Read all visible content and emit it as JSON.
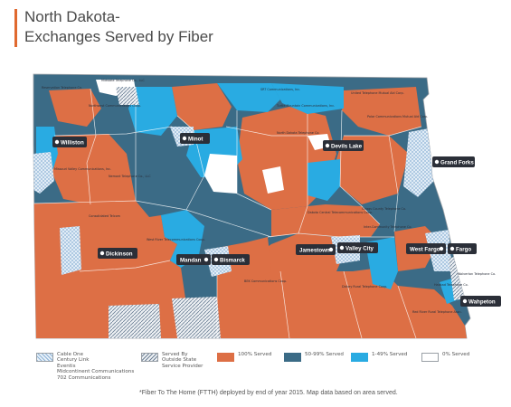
{
  "title": {
    "line1": "North Dakota-",
    "line2": "Exchanges Served by Fiber"
  },
  "colors": {
    "served_100": "#dd6f45",
    "served_50_99": "#3b6b86",
    "served_1_49": "#29abe2",
    "served_0": "#ffffff",
    "pattern_blue": "#a8c6e0",
    "pattern_grey": "#7e90a3",
    "title_accent": "#e0692f"
  },
  "cities": [
    {
      "label": "Williston"
    },
    {
      "label": "Minot"
    },
    {
      "label": "Devils Lake"
    },
    {
      "label": "Grand Forks"
    },
    {
      "label": "Dickinson"
    },
    {
      "label": "Mandan"
    },
    {
      "label": "Bismarck"
    },
    {
      "label": "Jamestown"
    },
    {
      "label": "Valley City"
    },
    {
      "label": "West Fargo"
    },
    {
      "label": "Fargo"
    },
    {
      "label": "Wahpeton"
    }
  ],
  "providers": [
    {
      "text": "Reservation Telephone Co."
    },
    {
      "text": "Midstate Telephone Co., LLC"
    },
    {
      "text": "Northwest Communications Coop."
    },
    {
      "text": "SRT Communications, Inc."
    },
    {
      "text": "Nemont Telephone Co., LLC"
    },
    {
      "text": "United Telephone Mutual Aid Corp."
    },
    {
      "text": "Polar Communications Mutual Aid Corp."
    },
    {
      "text": "Turtle Mountain Communications, Inc."
    },
    {
      "text": "Missouri Valley Communications, Inc."
    },
    {
      "text": "North Dakota Telephone Co."
    },
    {
      "text": "Consolidated Telcom"
    },
    {
      "text": "West River Telecommunications Coop."
    },
    {
      "text": "Dakota Central Telecommunications Coop."
    },
    {
      "text": "Griggs County Telephone Co."
    },
    {
      "text": "Inter-Community Telephone Co."
    },
    {
      "text": "BEK Communications Coop."
    },
    {
      "text": "Dickey Rural Telephone Coop."
    },
    {
      "text": "Red River Rural Telephone Assn."
    },
    {
      "text": "Halstad Telephone Co."
    },
    {
      "text": "Wolverton Telephone Co."
    }
  ],
  "legend": [
    {
      "label": "Cable One\nCentury Link\nEventis\nMidcontinent Communications\n702 Communications",
      "swatch": "pattern-blue"
    },
    {
      "label": "Served By\nOutside State\nService Provider",
      "swatch": "pattern-grey"
    },
    {
      "label": "100% Served",
      "swatch": "served_100"
    },
    {
      "label": "50-99% Served",
      "swatch": "served_50_99"
    },
    {
      "label": "1-49% Served",
      "swatch": "served_1_49"
    },
    {
      "label": "0% Served",
      "swatch": "served_0"
    }
  ],
  "footnote": "*Fiber To The Home (FTTH) deployed by end of year 2015. Map data based on area served."
}
